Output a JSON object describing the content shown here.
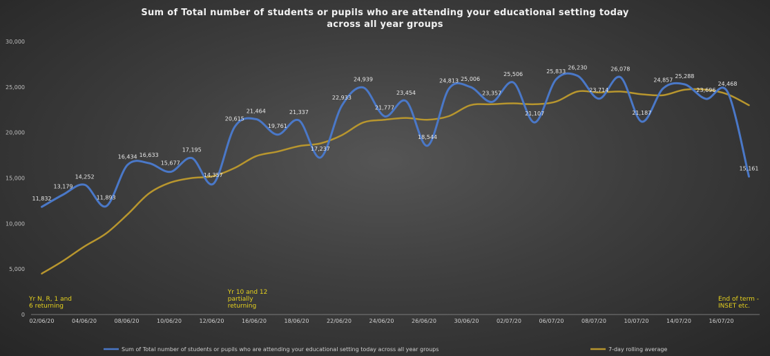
{
  "title_lines": [
    "Sum of Total number of students or pupils who are attending your educational setting today",
    "across all year groups"
  ],
  "chart_data": {
    "type": "line",
    "title": "Sum of Total number of students or pupils who are attending your educational setting today across all year groups",
    "xlabel": "",
    "ylabel": "",
    "ylim": [
      0,
      30000
    ],
    "yticks": [
      0,
      5000,
      10000,
      15000,
      20000,
      25000,
      30000
    ],
    "ytick_labels": [
      "0",
      "5,000",
      "10,000",
      "15,000",
      "20,000",
      "25,000",
      "30,000"
    ],
    "grid": false,
    "legend_position": "bottom",
    "x_tick_labels": [
      "02/06/20",
      "04/06/20",
      "08/06/20",
      "10/06/20",
      "12/06/20",
      "16/06/20",
      "18/06/20",
      "22/06/20",
      "24/06/20",
      "26/06/20",
      "30/06/20",
      "02/07/20",
      "06/07/20",
      "08/07/20",
      "10/07/20",
      "14/07/20",
      "16/07/20"
    ],
    "x": [
      "02/06/20",
      "03/06/20",
      "04/06/20",
      "05/06/20",
      "08/06/20",
      "09/06/20",
      "10/06/20",
      "11/06/20",
      "12/06/20",
      "15/06/20",
      "16/06/20",
      "17/06/20",
      "18/06/20",
      "19/06/20",
      "22/06/20",
      "23/06/20",
      "24/06/20",
      "25/06/20",
      "26/06/20",
      "29/06/20",
      "30/06/20",
      "01/07/20",
      "02/07/20",
      "03/07/20",
      "06/07/20",
      "07/07/20",
      "08/07/20",
      "09/07/20",
      "10/07/20",
      "13/07/20",
      "14/07/20",
      "15/07/20",
      "16/07/20",
      "17/07/20"
    ],
    "series": [
      {
        "name": "Sum of Total number of students or pupils who are attending your educational setting today across all year groups",
        "color": "#4a78c8",
        "values": [
          11832,
          13179,
          14252,
          11893,
          16434,
          16633,
          15677,
          17195,
          14357,
          20615,
          21464,
          19761,
          21337,
          17237,
          22933,
          24939,
          21777,
          23454,
          18544,
          24813,
          25006,
          23357,
          25506,
          21107,
          25833,
          26230,
          23714,
          26078,
          21187,
          24857,
          25288,
          23696,
          24468,
          15161
        ],
        "labels": [
          "11,832",
          "13,179",
          "14,252",
          "11,893",
          "16,434",
          "16,633",
          "15,677",
          "17,195",
          "14,357",
          "20,615",
          "21,464",
          "19,761",
          "21,337",
          "17,237",
          "22,933",
          "24,939",
          "21,777",
          "23,454",
          "18,544",
          "24,813",
          "25,006",
          "23,357",
          "25,506",
          "21,107",
          "25,833",
          "26,230",
          "23,714",
          "26,078",
          "21,187",
          "24,857",
          "25,288",
          "23,696",
          "24,468",
          "15,161"
        ]
      },
      {
        "name": "7-day rolling average",
        "color": "#b8962e",
        "values": [
          4500,
          5900,
          7500,
          8900,
          11000,
          13300,
          14500,
          15000,
          15200,
          16100,
          17400,
          17900,
          18500,
          18800,
          19700,
          21100,
          21400,
          21600,
          21400,
          21800,
          23000,
          23100,
          23200,
          23100,
          23400,
          24500,
          24400,
          24500,
          24200,
          24100,
          24700,
          24700,
          24200,
          23000
        ]
      }
    ],
    "annotations": [
      {
        "lines": [
          "Yr N, R, 1 and",
          "6  returning"
        ],
        "x_index": 0,
        "color": "#e6d21e"
      },
      {
        "lines": [
          "Yr 10 and 12",
          "partially",
          "returning"
        ],
        "x_index": 9,
        "color": "#e6d21e"
      },
      {
        "lines": [
          "End of term -",
          "INSET etc."
        ],
        "x_index": 33,
        "color": "#e6d21e"
      }
    ]
  }
}
